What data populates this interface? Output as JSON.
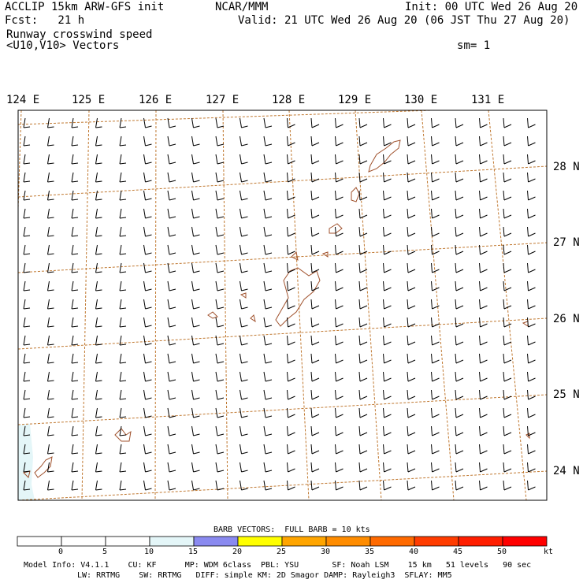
{
  "header": {
    "title_line1": "ACCLIP 15km ARW-GFS init",
    "title_line2": "Fcst:   21 h",
    "center": "NCAR/MMM",
    "init": "Init: 00 UTC Wed 26 Aug 20",
    "valid": "Valid: 21 UTC Wed 26 Aug 20 (06 JST Thu 27 Aug 20)",
    "field_name": "Runway crosswind speed",
    "vector_name": "<U10,V10> Vectors",
    "smoothing": "sm= 1"
  },
  "map": {
    "lon_labels": [
      "124 E",
      "125 E",
      "126 E",
      "127 E",
      "128 E",
      "129 E",
      "130 E",
      "131 E"
    ],
    "lat_labels": [
      "28 N",
      "27 N",
      "26 N",
      "25 N",
      "24 N"
    ],
    "colors": {
      "gridline": "#c07830",
      "coastline": "#a0522d",
      "barb": "#000000",
      "shade_0_15": "#e4f6f8"
    }
  },
  "legend": {
    "barb_note": "BARB VECTORS:  FULL BARB = 10 kts",
    "tick_labels": [
      "0",
      "5",
      "10",
      "15",
      "20",
      "25",
      "30",
      "35",
      "40",
      "45",
      "50"
    ],
    "unit": "kt",
    "bins": [
      {
        "range": "<0",
        "color": "#ffffff"
      },
      {
        "range": "0-5",
        "color": "#ffffff"
      },
      {
        "range": "5-10",
        "color": "#ffffff"
      },
      {
        "range": "10-15",
        "color": "#e4f6f8"
      },
      {
        "range": "15-20",
        "color": "#8a8af0"
      },
      {
        "range": "20-25",
        "color": "#ffff00"
      },
      {
        "range": "25-30",
        "color": "#ffa500"
      },
      {
        "range": "30-35",
        "color": "#ff8c00"
      },
      {
        "range": "35-40",
        "color": "#ff6a00"
      },
      {
        "range": "40-45",
        "color": "#ff3c00"
      },
      {
        "range": "45-50",
        "color": "#ff1e00"
      },
      {
        "range": ">50",
        "color": "#ff0000"
      }
    ]
  },
  "footer": {
    "line1": "Model Info: V4.1.1    CU: KF      MP: WDM 6class  PBL: YSU       SF: Noah LSM    15 km   51 levels   90 sec",
    "line2": "LW: RRTMG    SW: RRTMG   DIFF: simple KM: 2D Smagor DAMP: Rayleigh3  SFLAY: MM5"
  }
}
